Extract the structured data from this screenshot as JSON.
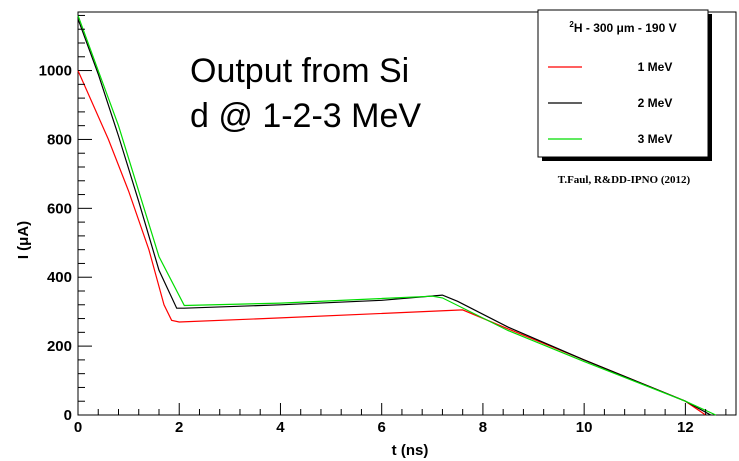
{
  "chart_data": {
    "type": "line",
    "title": "",
    "xlabel": "t (ns)",
    "ylabel": "I (μA)",
    "xlim": [
      0,
      13
    ],
    "ylim": [
      0,
      1170
    ],
    "x_ticks": [
      0,
      2,
      4,
      6,
      8,
      10,
      12
    ],
    "y_ticks": [
      0,
      200,
      400,
      600,
      800,
      1000
    ],
    "grid": false,
    "annotation_lines": [
      "Output from Si",
      "d @ 1-2-3 MeV"
    ],
    "legend": {
      "header_sup": "2",
      "header": "H - 300 μm - 190 V",
      "position": "top-right"
    },
    "credit": "T.Faul, R&DD-IPNO (2012)",
    "series": [
      {
        "name": "1 MeV",
        "color": "#ff0000",
        "points": [
          [
            0,
            1000
          ],
          [
            0.3,
            900
          ],
          [
            0.6,
            800
          ],
          [
            1.0,
            650
          ],
          [
            1.4,
            480
          ],
          [
            1.7,
            320
          ],
          [
            1.85,
            275
          ],
          [
            2.0,
            270
          ],
          [
            4.0,
            282
          ],
          [
            7.6,
            305
          ],
          [
            8.5,
            250
          ],
          [
            10,
            160
          ],
          [
            12,
            40
          ],
          [
            12.4,
            0
          ]
        ]
      },
      {
        "name": "2 MeV",
        "color": "#000000",
        "points": [
          [
            0,
            1150
          ],
          [
            0.4,
            990
          ],
          [
            0.8,
            810
          ],
          [
            1.2,
            620
          ],
          [
            1.6,
            420
          ],
          [
            1.95,
            310
          ],
          [
            2.1,
            310
          ],
          [
            4.0,
            320
          ],
          [
            6.0,
            333
          ],
          [
            7.2,
            348
          ],
          [
            7.5,
            330
          ],
          [
            8.5,
            255
          ],
          [
            10,
            160
          ],
          [
            12,
            40
          ],
          [
            12.5,
            0
          ]
        ]
      },
      {
        "name": "3 MeV",
        "color": "#00dd00",
        "points": [
          [
            0,
            1160
          ],
          [
            0.4,
            1000
          ],
          [
            0.8,
            840
          ],
          [
            1.2,
            650
          ],
          [
            1.6,
            460
          ],
          [
            2.1,
            318
          ],
          [
            4.0,
            325
          ],
          [
            7.0,
            345
          ],
          [
            7.2,
            340
          ],
          [
            8.5,
            245
          ],
          [
            10,
            155
          ],
          [
            12,
            40
          ],
          [
            12.6,
            0
          ]
        ]
      }
    ]
  }
}
